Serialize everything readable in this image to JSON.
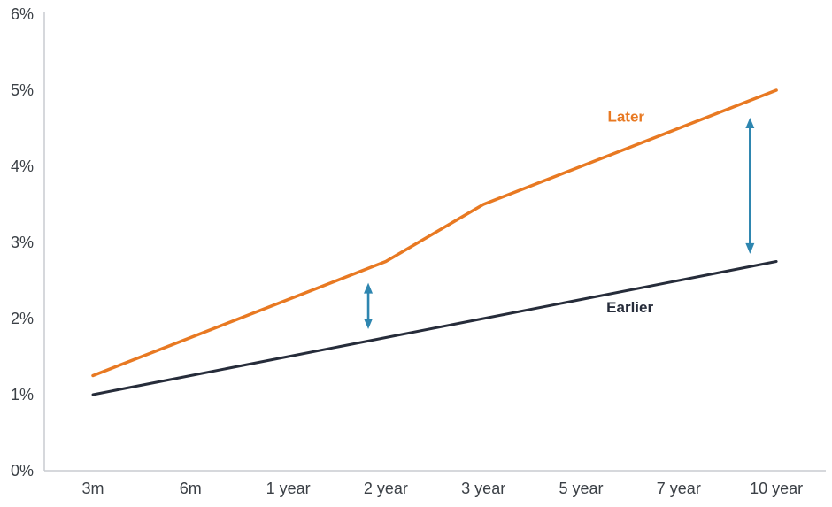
{
  "chart_data": {
    "type": "line",
    "title": "",
    "xlabel": "",
    "ylabel": "",
    "categories": [
      "3m",
      "6m",
      "1 year",
      "2 year",
      "3 year",
      "5 year",
      "7 year",
      "10 year"
    ],
    "series": [
      {
        "name": "Later",
        "color": "#e87922",
        "line_width": 3.5,
        "values": [
          1.25,
          1.75,
          2.25,
          2.75,
          3.5,
          4.0,
          4.5,
          5.0
        ]
      },
      {
        "name": "Earlier",
        "color": "#262c3a",
        "line_width": 3,
        "values": [
          1.0,
          1.25,
          1.5,
          1.75,
          2.0,
          2.25,
          2.5,
          2.75
        ]
      }
    ],
    "ylim": [
      0,
      6
    ],
    "yticks": [
      {
        "label": "0%",
        "value": 0
      },
      {
        "label": "1%",
        "value": 1
      },
      {
        "label": "2%",
        "value": 2
      },
      {
        "label": "3%",
        "value": 3
      },
      {
        "label": "4%",
        "value": 4
      },
      {
        "label": "5%",
        "value": 5
      },
      {
        "label": "6%",
        "value": 6
      }
    ],
    "grid": false,
    "legend_position": "inline-labels",
    "axis_color": "#c8ccd0",
    "label_color": "#3b4046",
    "annotations": {
      "series_labels": [
        {
          "text": "Later",
          "color": "#e87922",
          "x_index": 5.46,
          "value": 4.59
        },
        {
          "text": "Earlier",
          "color": "#262c3a",
          "x_index": 5.5,
          "value": 2.08
        }
      ],
      "arrows": [
        {
          "x_index": 2.82,
          "from_value": 1.86,
          "to_value": 2.47,
          "color": "#2e86b0"
        },
        {
          "x_index": 6.73,
          "from_value": 2.85,
          "to_value": 4.64,
          "color": "#2e86b0"
        }
      ]
    }
  }
}
